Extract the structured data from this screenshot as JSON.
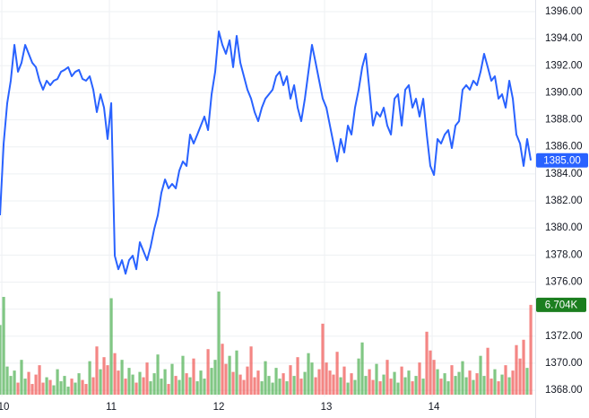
{
  "chart_data": {
    "type": "line",
    "x": [
      9.983,
      10.017,
      10.05,
      10.083,
      10.117,
      10.15,
      10.183,
      10.217,
      10.25,
      10.283,
      10.317,
      10.35,
      10.383,
      10.417,
      10.45,
      10.483,
      10.517,
      10.55,
      10.583,
      10.617,
      10.65,
      10.683,
      10.717,
      10.75,
      10.783,
      10.817,
      10.85,
      10.883,
      10.917,
      10.95,
      10.983,
      11.017,
      11.05,
      11.083,
      11.117,
      11.15,
      11.183,
      11.217,
      11.25,
      11.283,
      11.317,
      11.35,
      11.383,
      11.417,
      11.45,
      11.483,
      11.517,
      11.55,
      11.583,
      11.617,
      11.65,
      11.683,
      11.717,
      11.75,
      11.783,
      11.817,
      11.85,
      11.883,
      11.917,
      11.95,
      11.983,
      12.017,
      12.05,
      12.083,
      12.117,
      12.15,
      12.183,
      12.217,
      12.25,
      12.283,
      12.317,
      12.35,
      12.383,
      12.417,
      12.45,
      12.483,
      12.517,
      12.55,
      12.583,
      12.617,
      12.65,
      12.683,
      12.717,
      12.75,
      12.783,
      12.817,
      12.85,
      12.883,
      12.917,
      12.95,
      12.983,
      13.017,
      13.05,
      13.083,
      13.117,
      13.15,
      13.183,
      13.217,
      13.25,
      13.283,
      13.317,
      13.35,
      13.383,
      13.417,
      13.45,
      13.483,
      13.517,
      13.55,
      13.583,
      13.617,
      13.65,
      13.683,
      13.717,
      13.75,
      13.783,
      13.817,
      13.85,
      13.883,
      13.917,
      13.95,
      13.983,
      14.017,
      14.05,
      14.083,
      14.117,
      14.15,
      14.183,
      14.217,
      14.25,
      14.283,
      14.317,
      14.35,
      14.383,
      14.417,
      14.45,
      14.483,
      14.517,
      14.55,
      14.583,
      14.617,
      14.65,
      14.683,
      14.717,
      14.75,
      14.783,
      14.817,
      14.85,
      14.883,
      14.917
    ],
    "series": [
      {
        "color": "#2962ff",
        "last_value_label": "1385.00",
        "values": [
          1380.94,
          1386.25,
          1389.23,
          1390.89,
          1393.54,
          1391.55,
          1392.22,
          1393.54,
          1392.88,
          1392.22,
          1391.89,
          1390.89,
          1390.23,
          1390.89,
          1390.56,
          1390.89,
          1391.02,
          1391.55,
          1391.69,
          1391.89,
          1391.22,
          1391.55,
          1391.69,
          1391.02,
          1390.89,
          1391.22,
          1390.23,
          1388.57,
          1389.89,
          1388.9,
          1386.58,
          1389.23,
          1377.95,
          1376.95,
          1377.62,
          1376.62,
          1377.62,
          1377.95,
          1376.95,
          1378.95,
          1378.28,
          1377.62,
          1378.61,
          1379.94,
          1380.94,
          1382.6,
          1383.59,
          1382.93,
          1383.26,
          1382.93,
          1384.25,
          1384.92,
          1384.59,
          1386.91,
          1386.25,
          1386.91,
          1387.57,
          1388.24,
          1387.24,
          1389.89,
          1391.55,
          1394.54,
          1393.54,
          1392.88,
          1393.88,
          1391.89,
          1394.21,
          1392.22,
          1391.22,
          1390.23,
          1389.56,
          1388.57,
          1387.9,
          1388.9,
          1389.56,
          1389.89,
          1390.23,
          1391.22,
          1391.55,
          1390.56,
          1391.22,
          1389.56,
          1390.56,
          1388.9,
          1387.9,
          1389.56,
          1391.55,
          1393.54,
          1392.22,
          1390.89,
          1389.56,
          1388.9,
          1387.57,
          1386.25,
          1384.92,
          1386.58,
          1385.58,
          1387.57,
          1386.91,
          1388.9,
          1390.23,
          1391.89,
          1392.88,
          1390.23,
          1387.57,
          1388.57,
          1388.24,
          1388.9,
          1387.57,
          1386.91,
          1389.56,
          1389.89,
          1387.57,
          1390.23,
          1390.56,
          1388.9,
          1389.56,
          1388.24,
          1389.56,
          1386.91,
          1384.59,
          1383.92,
          1386.58,
          1386.25,
          1386.91,
          1387.24,
          1385.91,
          1387.57,
          1387.9,
          1390.23,
          1390.56,
          1390.23,
          1390.89,
          1390.56,
          1391.55,
          1392.88,
          1391.89,
          1390.89,
          1391.22,
          1389.56,
          1389.89,
          1388.9,
          1390.89,
          1389.56,
          1386.91,
          1386.25,
          1384.59,
          1386.58,
          1385.0
        ]
      }
    ],
    "volume": {
      "up_color": "#4caf50",
      "down_color": "#ef5350",
      "ylim": [
        0,
        7700
      ],
      "last_value_label": "6.704K",
      "values": [
        5200,
        7300,
        2100,
        1400,
        1800,
        900,
        2600,
        1200,
        1700,
        800,
        1500,
        2200,
        900,
        1300,
        1100,
        700,
        1900,
        1000,
        1400,
        600,
        1200,
        900,
        1600,
        1100,
        800,
        2500,
        1300,
        3600,
        1900,
        2800,
        2200,
        7200,
        3100,
        1800,
        2600,
        1200,
        2000,
        1500,
        900,
        1700,
        1300,
        2400,
        1000,
        1600,
        3000,
        1200,
        1900,
        800,
        2300,
        1400,
        1100,
        2900,
        1600,
        1300,
        2700,
        1000,
        1800,
        1200,
        3400,
        2000,
        2600,
        7700,
        3800,
        2300,
        2900,
        1700,
        3300,
        1500,
        1100,
        2100,
        3600,
        1300,
        1800,
        1000,
        2500,
        1400,
        900,
        2000,
        1200,
        1600,
        1000,
        2200,
        1400,
        2800,
        1200,
        1700,
        3100,
        2400,
        1300,
        1900,
        5300,
        2400,
        1800,
        1500,
        3200,
        1300,
        2100,
        900,
        1600,
        1100,
        2700,
        3900,
        1400,
        1900,
        1100,
        2300,
        1000,
        1500,
        2600,
        1200,
        1700,
        900,
        2100,
        1300,
        1800,
        1000,
        1400,
        2400,
        1200,
        4700,
        3300,
        2600,
        1900,
        1200,
        1600,
        1000,
        2200,
        1400,
        1700,
        2500,
        1300,
        1800,
        1100,
        1600,
        2900,
        1400,
        3500,
        1200,
        1900,
        1000,
        1500,
        2200,
        1300,
        1800,
        3700,
        2700,
        4100,
        2000,
        6704
      ]
    },
    "xlim": [
      9.983,
      14.958
    ],
    "xticks": [
      10,
      11,
      12,
      13,
      14
    ],
    "ylim": [
      1367.54,
      1396.86
    ],
    "yticks": [
      {
        "value": 1368,
        "label": "1368.00"
      },
      {
        "value": 1370,
        "label": "1370.00"
      },
      {
        "value": 1372,
        "label": "1372.00"
      },
      {
        "value": 1374,
        "label": "1374.00"
      },
      {
        "value": 1376,
        "label": "1376.00"
      },
      {
        "value": 1378,
        "label": "1378.00"
      },
      {
        "value": 1380,
        "label": "1380.00"
      },
      {
        "value": 1382,
        "label": "1382.00"
      },
      {
        "value": 1384,
        "label": "1384.00"
      },
      {
        "value": 1386,
        "label": "1386.00"
      },
      {
        "value": 1388,
        "label": "1388.00"
      },
      {
        "value": 1390,
        "label": "1390.00"
      },
      {
        "value": 1392,
        "label": "1392.00"
      },
      {
        "value": 1394,
        "label": "1394.00"
      },
      {
        "value": 1396,
        "label": "1396.00"
      }
    ],
    "grid": true
  }
}
